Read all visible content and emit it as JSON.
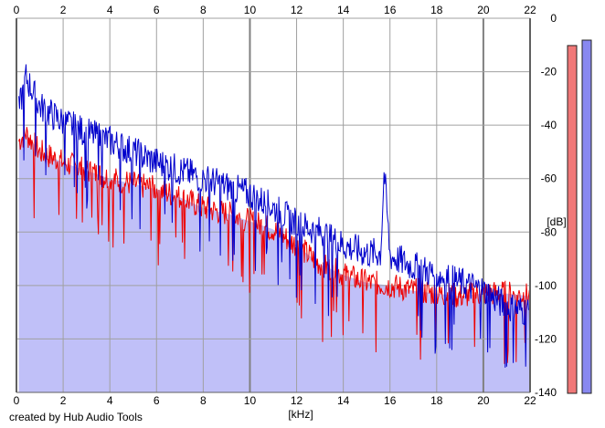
{
  "chart_data": {
    "type": "area",
    "xlabel": "[kHz]",
    "ylabel": "[dB]",
    "xlim": [
      0,
      22
    ],
    "ylim": [
      -140,
      0
    ],
    "x_ticks": [
      0,
      2,
      4,
      6,
      8,
      10,
      12,
      14,
      16,
      18,
      20,
      22
    ],
    "y_ticks": [
      0,
      -20,
      -40,
      -60,
      -80,
      -100,
      -120,
      -140
    ],
    "grid": true,
    "colors": {
      "fill": "#c0c0f8",
      "left_channel": "#ee0000",
      "right_channel": "#0000cc",
      "grid": "#a0a0a0",
      "grid_major": "#808080"
    },
    "series": [
      {
        "channel": "left",
        "color": "#ee0000",
        "x": [
          0.1,
          0.4,
          1,
          2,
          3,
          4,
          5,
          6,
          7,
          8,
          9,
          10,
          11,
          12,
          13,
          14,
          15,
          16,
          17,
          18,
          19,
          20,
          21,
          22
        ],
        "values": [
          -46,
          -43,
          -50,
          -54,
          -57,
          -60,
          -62,
          -64,
          -67,
          -71,
          -73,
          -76,
          -79,
          -85,
          -92,
          -96,
          -99,
          -100,
          -102,
          -103,
          -104,
          -103,
          -103,
          -104
        ]
      },
      {
        "channel": "right",
        "color": "#0000cc",
        "x": [
          0.1,
          0.4,
          1,
          2,
          3,
          4,
          5,
          6,
          7,
          8,
          9,
          10,
          11,
          12,
          13,
          14,
          15,
          15.6,
          15.75,
          16,
          17,
          18,
          19,
          20,
          21,
          22
        ],
        "values": [
          -35,
          -22,
          -33,
          -39,
          -43,
          -46,
          -50,
          -54,
          -57,
          -60,
          -63,
          -66,
          -71,
          -77,
          -80,
          -85,
          -88,
          -88,
          -57,
          -89,
          -93,
          -96,
          -99,
          -102,
          -108,
          -110
        ]
      }
    ],
    "level_meters": [
      {
        "channel": "left",
        "color": "#f07878",
        "level_db": -1
      },
      {
        "channel": "right",
        "color": "#8888f0",
        "level_db": 1
      }
    ]
  },
  "footer": {
    "credit": "created by Hub Audio Tools"
  }
}
